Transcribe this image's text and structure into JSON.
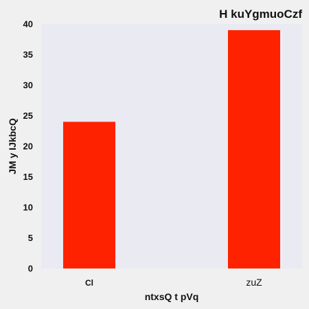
{
  "chart_data": {
    "type": "bar",
    "title": "H kuYgmuoCzf",
    "xlabel": "ntxsQ t pVq",
    "ylabel": "JM y IJkbcQ",
    "categories": [
      "Cl",
      "zuZ"
    ],
    "values": [
      24,
      39
    ],
    "ylim": [
      0,
      40
    ],
    "yticks": [
      0,
      5,
      10,
      15,
      20,
      25,
      30,
      35,
      40
    ],
    "grid": false,
    "legend": "none",
    "colors": {
      "bar": "#ff2200",
      "plot_background": "#eaeaf2",
      "figure_background": "#f0f0f0"
    }
  }
}
